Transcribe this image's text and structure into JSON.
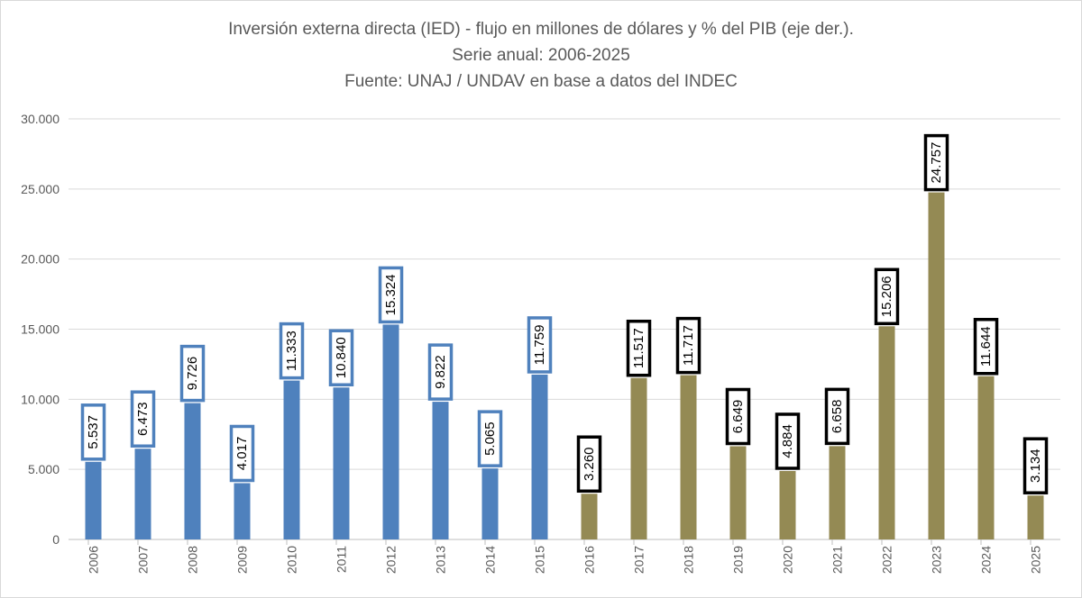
{
  "chart_data": {
    "type": "bar",
    "title": "Inversión externa directa (IED) - flujo en millones de dólares y % del PIB (eje der.).",
    "subtitle": "Serie anual: 2006-2025",
    "source": "Fuente: UNAJ / UNDAV en base a datos del INDEC",
    "categories": [
      "2006",
      "2007",
      "2008",
      "2009",
      "2010",
      "2011",
      "2012",
      "2013",
      "2014",
      "2015",
      "2016",
      "2017",
      "2018",
      "2019",
      "2020",
      "2021",
      "2022",
      "2023",
      "2024",
      "2025"
    ],
    "values": [
      5537,
      6473,
      9726,
      4017,
      11333,
      10840,
      15324,
      9822,
      5065,
      11759,
      3260,
      11517,
      11717,
      6649,
      4884,
      6658,
      15206,
      24757,
      11644,
      3134
    ],
    "value_labels": [
      "5.537",
      "6.473",
      "9.726",
      "4.017",
      "11.333",
      "10.840",
      "15.324",
      "9.822",
      "5.065",
      "11.759",
      "3.260",
      "11.517",
      "11.717",
      "6.649",
      "4.884",
      "6.658",
      "15.206",
      "24.757",
      "11.644",
      "3.134"
    ],
    "bar_colors": [
      "#4f81bd",
      "#4f81bd",
      "#4f81bd",
      "#4f81bd",
      "#4f81bd",
      "#4f81bd",
      "#4f81bd",
      "#4f81bd",
      "#4f81bd",
      "#4f81bd",
      "#948a54",
      "#948a54",
      "#948a54",
      "#948a54",
      "#948a54",
      "#948a54",
      "#948a54",
      "#948a54",
      "#948a54",
      "#948a54"
    ],
    "label_border_colors": [
      "#4f81bd",
      "#4f81bd",
      "#4f81bd",
      "#4f81bd",
      "#4f81bd",
      "#4f81bd",
      "#4f81bd",
      "#4f81bd",
      "#4f81bd",
      "#4f81bd",
      "#000000",
      "#000000",
      "#000000",
      "#000000",
      "#000000",
      "#000000",
      "#000000",
      "#000000",
      "#000000",
      "#000000"
    ],
    "yticks": [
      0,
      5000,
      10000,
      15000,
      20000,
      25000,
      30000
    ],
    "ytick_labels": [
      "0",
      "5.000",
      "10.000",
      "15.000",
      "20.000",
      "25.000",
      "30.000"
    ],
    "ylim": [
      0,
      30000
    ],
    "xlabel": "",
    "ylabel": "",
    "grid": true,
    "legend": "none"
  }
}
